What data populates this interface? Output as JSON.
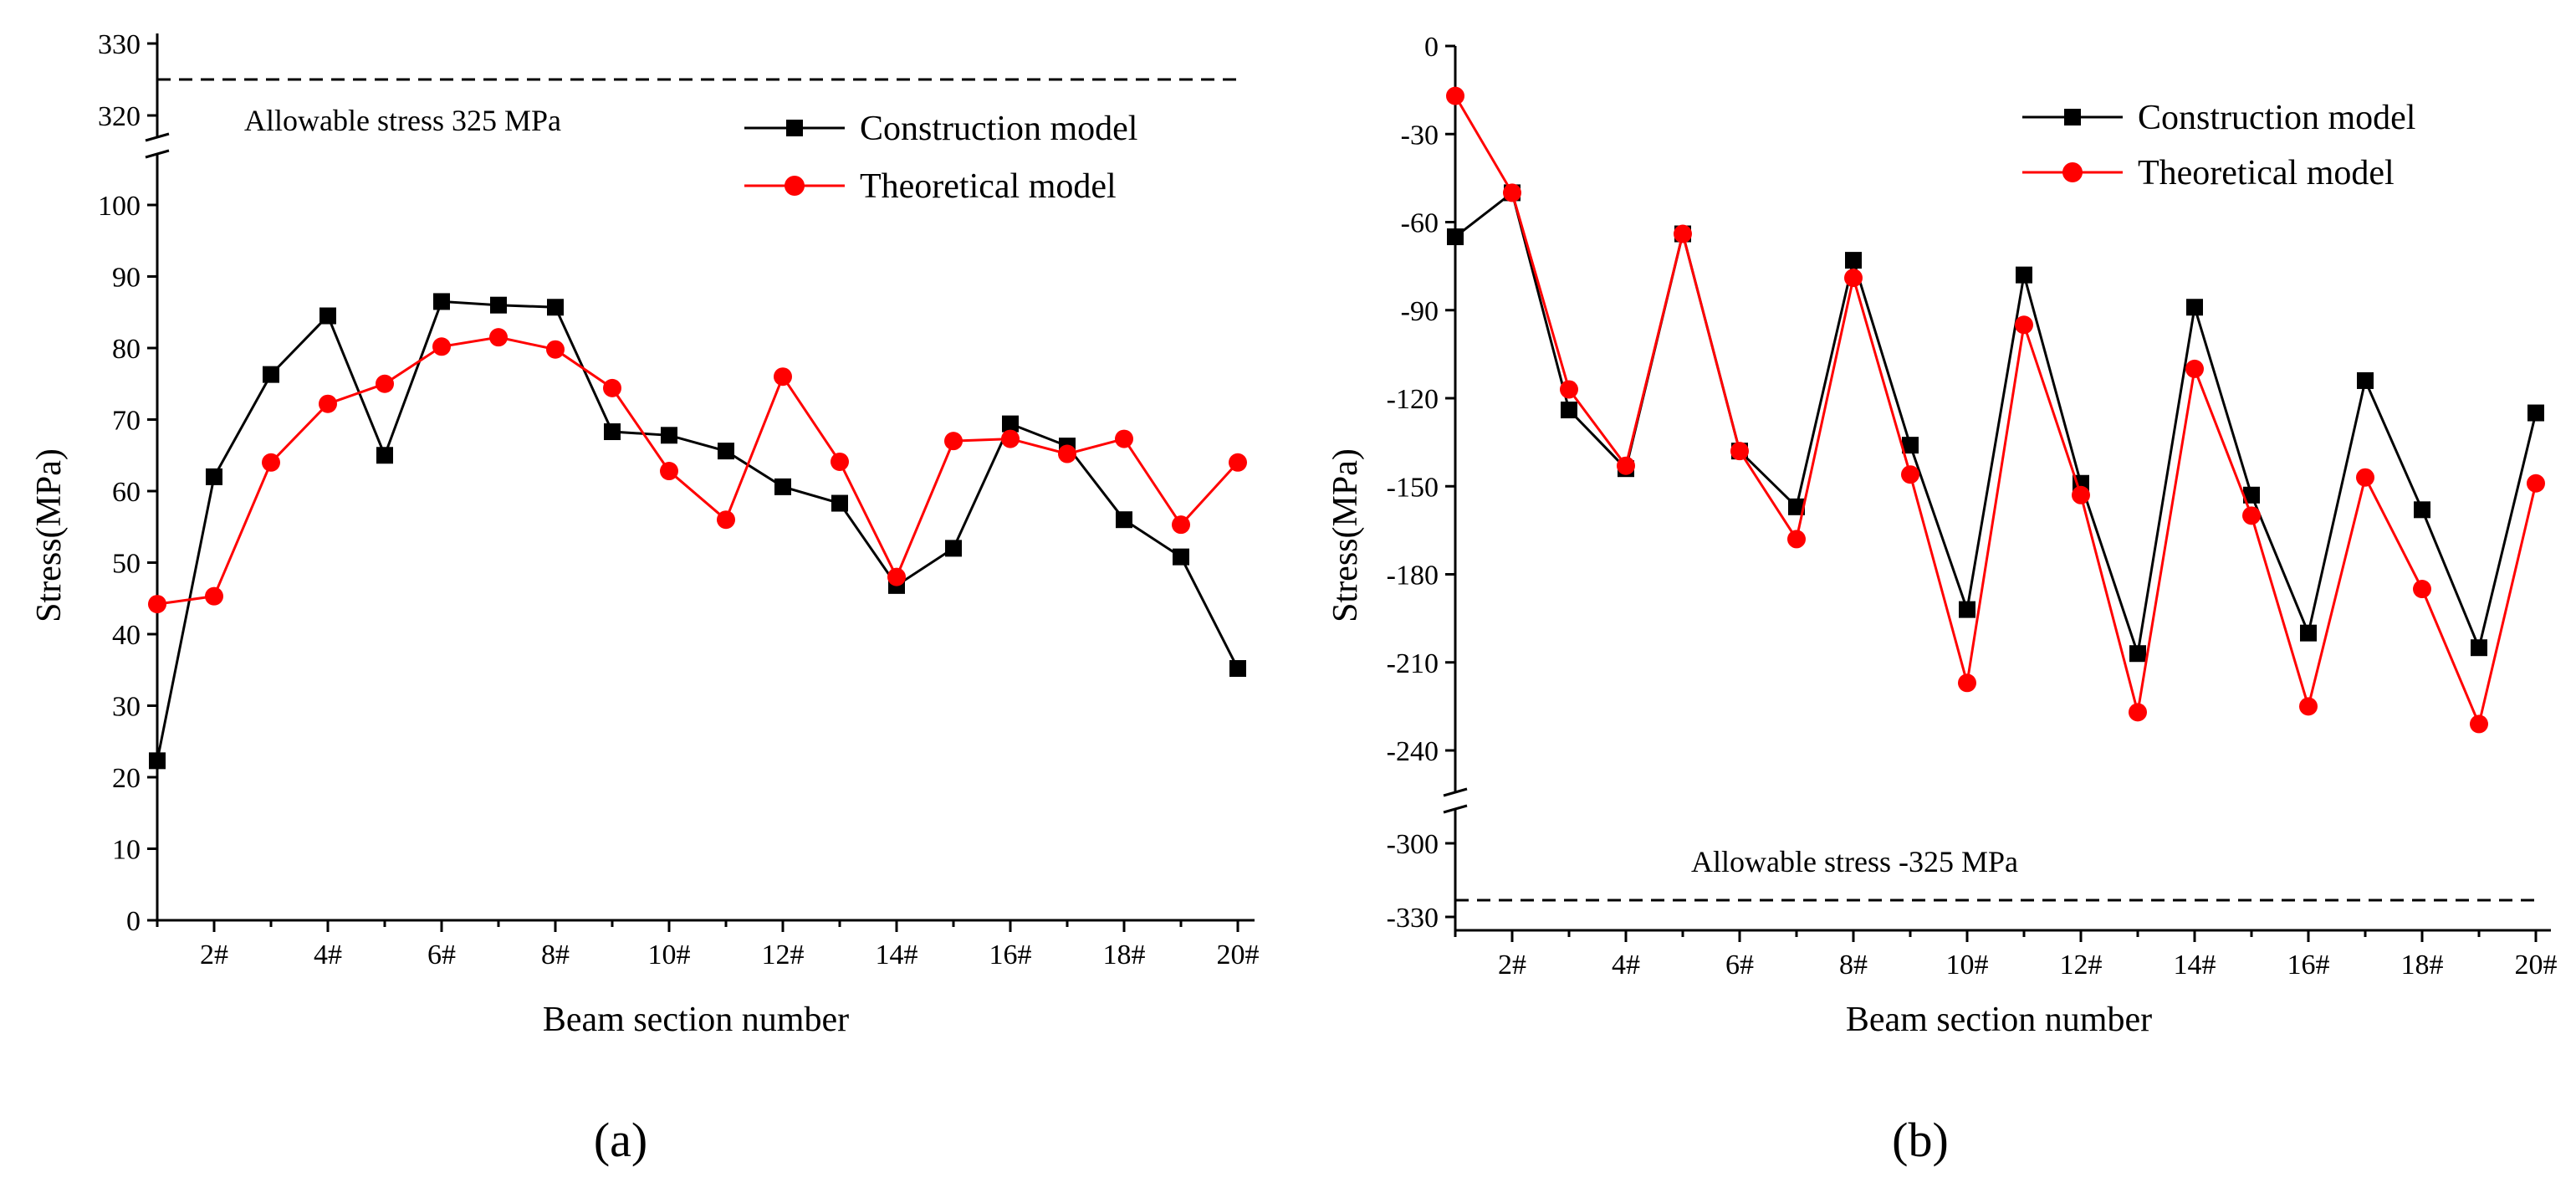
{
  "chart_data": [
    {
      "type": "line",
      "panel_label": "(a)",
      "xlabel": "Beam section number",
      "ylabel": "Stress(MPa)",
      "x": [
        1,
        2,
        3,
        4,
        5,
        6,
        7,
        8,
        9,
        10,
        11,
        12,
        13,
        14,
        15,
        16,
        17,
        18,
        19,
        20
      ],
      "x_tick_labels": [
        "2#",
        "4#",
        "6#",
        "8#",
        "10#",
        "12#",
        "14#",
        "16#",
        "18#",
        "20#"
      ],
      "y_ticks_lower": [
        "0",
        "10",
        "20",
        "30",
        "40",
        "50",
        "60",
        "70",
        "80",
        "90",
        "100"
      ],
      "y_ticks_upper": [
        "320",
        "330"
      ],
      "ylim_lower": [
        0,
        100
      ],
      "ylim_upper": [
        318,
        330
      ],
      "axis_break": true,
      "series": [
        {
          "name": "Construction model",
          "color": "#000000",
          "marker": "square",
          "values": [
            22.3,
            62.0,
            76.3,
            84.5,
            65.0,
            86.5,
            86.0,
            85.7,
            68.3,
            67.8,
            65.6,
            60.6,
            58.3,
            46.8,
            52.0,
            69.4,
            66.3,
            56.0,
            50.8,
            35.2
          ]
        },
        {
          "name": "Theoretical model",
          "color": "#ff0000",
          "marker": "circle",
          "values": [
            44.2,
            45.3,
            64.0,
            72.2,
            75.0,
            80.2,
            81.5,
            79.8,
            74.4,
            62.8,
            56.0,
            76.0,
            64.1,
            48.0,
            67.0,
            67.3,
            65.2,
            67.3,
            55.3,
            64.0
          ]
        }
      ],
      "reference_line": {
        "label": "Allowable stress 325 MPa",
        "value": 325
      }
    },
    {
      "type": "line",
      "panel_label": "(b)",
      "xlabel": "Beam section number",
      "ylabel": "Stress(MPa)",
      "x": [
        1,
        2,
        3,
        4,
        5,
        6,
        7,
        8,
        9,
        10,
        11,
        12,
        13,
        14,
        15,
        16,
        17,
        18,
        19,
        20
      ],
      "x_tick_labels": [
        "2#",
        "4#",
        "6#",
        "8#",
        "10#",
        "12#",
        "14#",
        "16#",
        "18#",
        "20#"
      ],
      "y_ticks_upper": [
        "0",
        "-30",
        "-60",
        "-90",
        "-120",
        "-150",
        "-180",
        "-210",
        "-240"
      ],
      "y_ticks_lower": [
        "-300",
        "-330"
      ],
      "ylim_upper": [
        -255,
        0
      ],
      "ylim_lower": [
        -330,
        -288
      ],
      "axis_break": true,
      "series": [
        {
          "name": "Construction model",
          "color": "#000000",
          "marker": "square",
          "values": [
            -65,
            -50,
            -124,
            -144,
            -64,
            -138,
            -157,
            -73,
            -136,
            -192,
            -78,
            -149,
            -207,
            -89,
            -153,
            -200,
            -114,
            -158,
            -205,
            -125
          ]
        },
        {
          "name": "Theoretical model",
          "color": "#ff0000",
          "marker": "circle",
          "values": [
            -17,
            -50,
            -117,
            -143,
            -64,
            -138,
            -168,
            -79,
            -146,
            -217,
            -95,
            -153,
            -227,
            -110,
            -160,
            -225,
            -147,
            -185,
            -231,
            -149
          ]
        }
      ],
      "reference_line": {
        "label": "Allowable stress -325 MPa",
        "value": -325
      }
    }
  ]
}
